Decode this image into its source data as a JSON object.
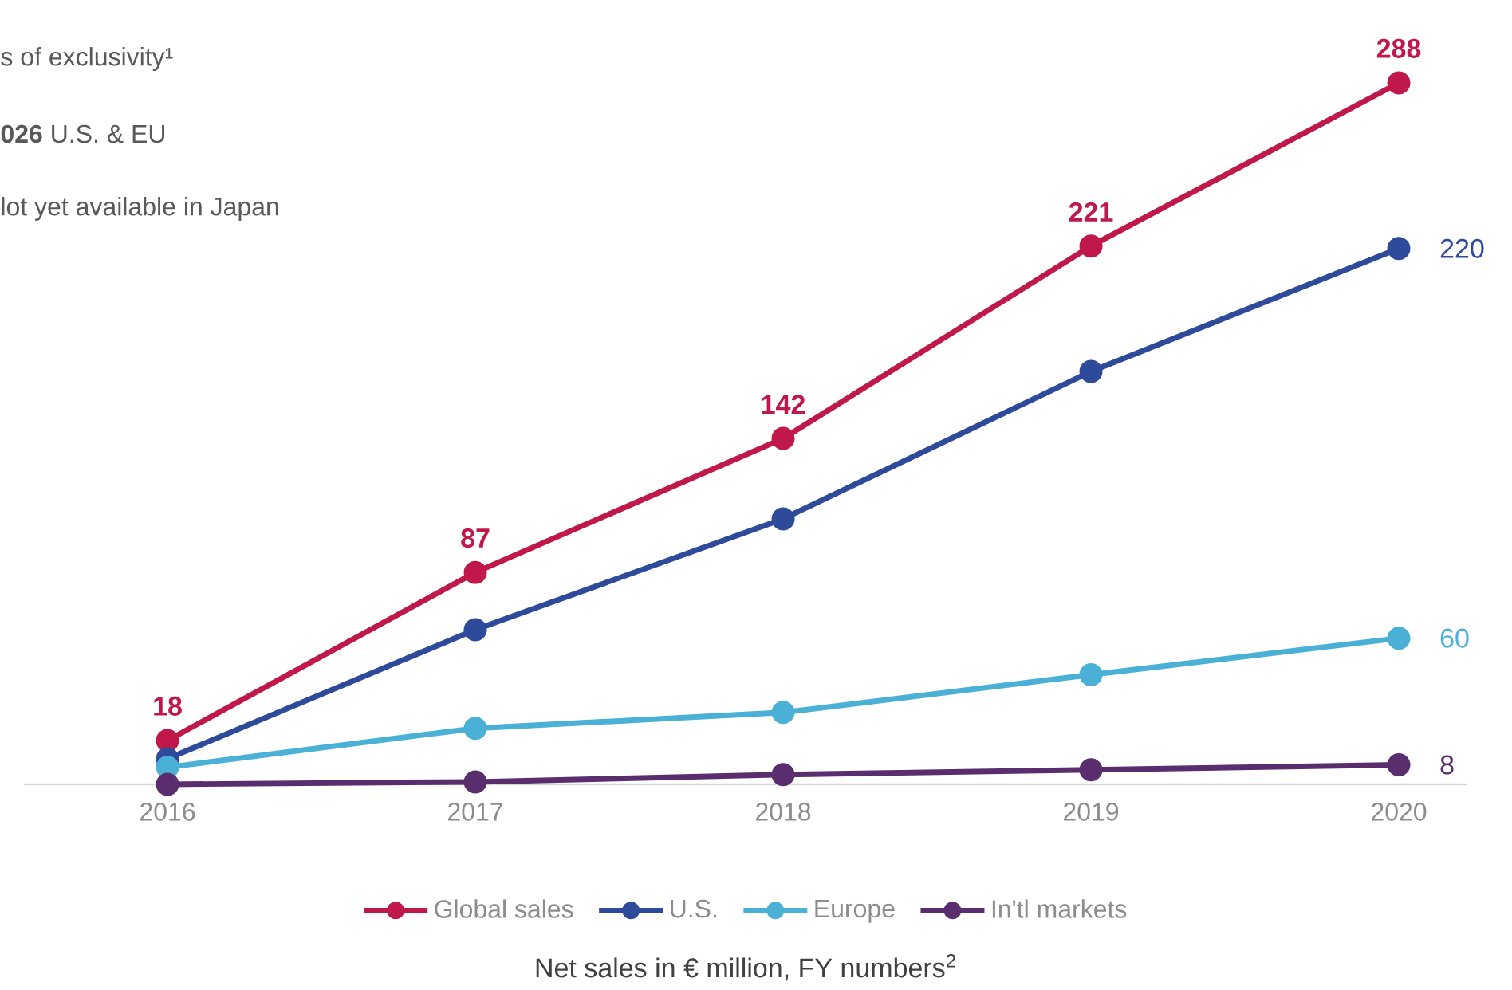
{
  "chart_data": {
    "type": "line",
    "categories": [
      "2016",
      "2017",
      "2018",
      "2019",
      "2020"
    ],
    "series": [
      {
        "name": "Global sales",
        "color": "#c0184a",
        "values": [
          18,
          87,
          142,
          221,
          288
        ],
        "value_labels": [
          "18",
          "87",
          "142",
          "221",
          "288"
        ]
      },
      {
        "name": "U.S.",
        "color": "#2e4a9a",
        "values": [
          10.5,
          63.5,
          109,
          169.5,
          220
        ],
        "value_labels": [
          null,
          null,
          null,
          null,
          "220"
        ]
      },
      {
        "name": "Europe",
        "color": "#4ab0d6",
        "values": [
          7,
          23,
          29.5,
          45,
          60
        ],
        "value_labels": [
          null,
          null,
          null,
          null,
          "60"
        ]
      },
      {
        "name": "In'tl markets",
        "color": "#5a2d6e",
        "values": [
          0,
          1,
          4,
          6,
          8
        ],
        "value_labels": [
          null,
          null,
          null,
          null,
          "8"
        ]
      }
    ],
    "tick_labels": "x",
    "marker": "circle",
    "line_style": "solid",
    "legend": "bottom",
    "grid": false,
    "xlabel": "Net sales in € million, FY numbers$^{2}$",
    "annotations": [
      "s of exclusivity¹",
      "**026** U.S. & EU",
      "lot yet available in Japan"
    ]
  }
}
